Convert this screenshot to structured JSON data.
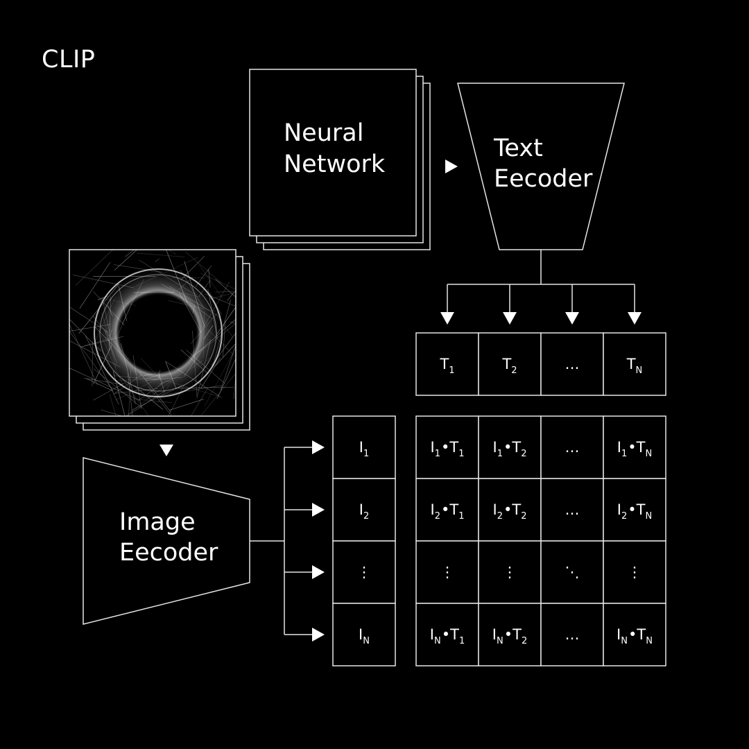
{
  "title": "CLIP",
  "neural_network": {
    "line1": "Neural",
    "line2": "Network"
  },
  "text_encoder": {
    "line1": "Text",
    "line2": "Eecoder"
  },
  "image_encoder": {
    "line1": "Image",
    "line2": "Eecoder"
  },
  "text_features": [
    {
      "base": "T",
      "sub": "1"
    },
    {
      "base": "T",
      "sub": "2"
    },
    {
      "base": "…",
      "sub": ""
    },
    {
      "base": "T",
      "sub": "N"
    }
  ],
  "image_features": [
    {
      "base": "I",
      "sub": "1"
    },
    {
      "base": "I",
      "sub": "2"
    },
    {
      "base": "⋮",
      "sub": ""
    },
    {
      "base": "I",
      "sub": "N"
    }
  ],
  "ellipsis": {
    "horizontal": "…",
    "vertical": "⋮",
    "diagonal": "⋱"
  },
  "dot_operator": "•",
  "colors": {
    "background": "#000000",
    "foreground": "#ffffff",
    "stroke": "#e6e6e6"
  },
  "icons": {
    "arrow": "triangle-arrow-icon",
    "photo": "abstract-sphere-image"
  }
}
